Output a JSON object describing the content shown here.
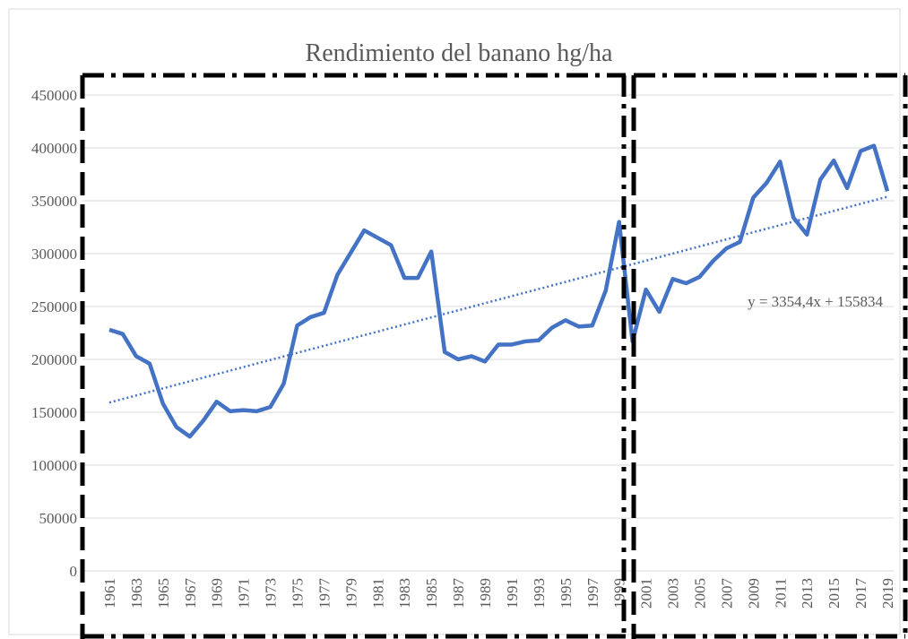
{
  "chart_data": {
    "type": "line",
    "title": "Rendimiento del banano hg/ha",
    "categories": [
      "1961",
      null,
      "1963",
      null,
      "1965",
      null,
      "1967",
      null,
      "1969",
      null,
      "1971",
      null,
      "1973",
      null,
      "1975",
      null,
      "1977",
      null,
      "1979",
      null,
      "1981",
      null,
      "1983",
      null,
      "1985",
      null,
      "1987",
      null,
      "1989",
      null,
      "1991",
      null,
      "1993",
      null,
      "1995",
      null,
      "1997",
      null,
      "1999",
      null,
      "2001",
      null,
      "2003",
      null,
      "2005",
      null,
      "2007",
      null,
      "2009",
      null,
      "2011",
      null,
      "2013",
      null,
      "2015",
      null,
      "2017",
      null,
      "2019"
    ],
    "series": [
      {
        "color": "#4472c4",
        "values": [
          228000,
          224000,
          203000,
          196000,
          158000,
          136000,
          127000,
          142000,
          160000,
          151000,
          152000,
          151000,
          155000,
          177000,
          232000,
          240000,
          244000,
          280000,
          301000,
          322000,
          315000,
          308000,
          277000,
          277000,
          302000,
          207000,
          200000,
          203000,
          198000,
          214000,
          214000,
          217000,
          218000,
          230000,
          237000,
          231000,
          232000,
          265000,
          330000,
          217000,
          266000,
          245000,
          276000,
          272000,
          278000,
          293000,
          305000,
          311000,
          353000,
          367000,
          387000,
          334000,
          318000,
          370000,
          388000,
          362000,
          397000,
          402000,
          359000
        ]
      }
    ],
    "trendline": {
      "equation": "y = 3354,4x + 155834",
      "slope": 3354.4,
      "intercept": 155834,
      "color": "#4472c4"
    },
    "ylim": [
      0,
      450000
    ],
    "yticks": [
      0,
      50000,
      100000,
      150000,
      200000,
      250000,
      300000,
      350000,
      400000,
      450000
    ],
    "grid": true
  }
}
